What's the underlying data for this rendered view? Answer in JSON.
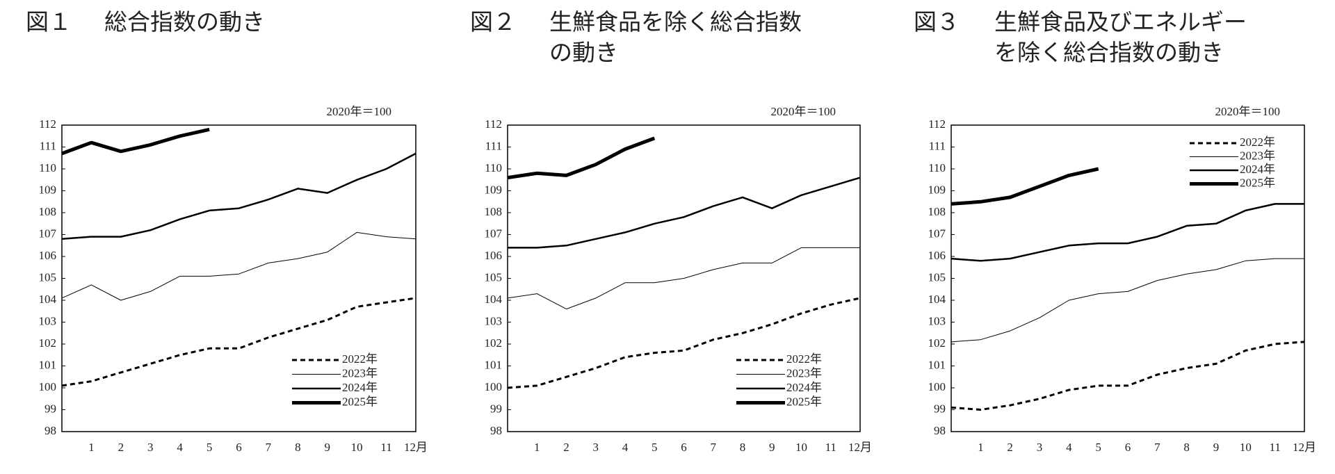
{
  "chart_data": [
    {
      "type": "line",
      "figure": "図１",
      "title_lines": [
        "総合指数の動き"
      ],
      "note": "2020年＝100",
      "categories": [
        null,
        "1",
        "2",
        "3",
        "4",
        "5",
        "6",
        "7",
        "8",
        "9",
        "10",
        "11",
        "12月"
      ],
      "ylim": [
        98,
        112
      ],
      "yticks": [
        98,
        99,
        100,
        101,
        102,
        103,
        104,
        105,
        106,
        107,
        108,
        109,
        110,
        111,
        112
      ],
      "legend": "lower right",
      "series": [
        {
          "name": "2022年",
          "color": "#000000",
          "width": 3,
          "dash": true,
          "values": [
            100.1,
            100.3,
            100.7,
            101.1,
            101.5,
            101.8,
            101.8,
            102.3,
            102.7,
            103.1,
            103.7,
            103.9,
            104.1
          ]
        },
        {
          "name": "2023年",
          "color": "#000000",
          "width": 1,
          "dash": false,
          "values": [
            104.1,
            104.7,
            104.0,
            104.4,
            105.1,
            105.1,
            105.2,
            105.7,
            105.9,
            106.2,
            107.1,
            106.9,
            106.8
          ]
        },
        {
          "name": "2024年",
          "color": "#000000",
          "width": 2.5,
          "dash": false,
          "values": [
            106.8,
            106.9,
            106.9,
            107.2,
            107.7,
            108.1,
            108.2,
            108.6,
            109.1,
            108.9,
            109.5,
            110.0,
            110.7
          ]
        },
        {
          "name": "2025年",
          "color": "#000000",
          "width": 5,
          "dash": false,
          "values": [
            110.7,
            111.2,
            110.8,
            111.1,
            111.5,
            111.8,
            null,
            null,
            null,
            null,
            null,
            null,
            null
          ]
        }
      ]
    },
    {
      "type": "line",
      "figure": "図２",
      "title_lines": [
        "生鮮食品を除く総合指数",
        "の動き"
      ],
      "note": "2020年＝100",
      "categories": [
        null,
        "1",
        "2",
        "3",
        "4",
        "5",
        "6",
        "7",
        "8",
        "9",
        "10",
        "11",
        "12月"
      ],
      "ylim": [
        98,
        112
      ],
      "yticks": [
        98,
        99,
        100,
        101,
        102,
        103,
        104,
        105,
        106,
        107,
        108,
        109,
        110,
        111,
        112
      ],
      "legend": "lower right",
      "series": [
        {
          "name": "2022年",
          "color": "#000000",
          "width": 3,
          "dash": true,
          "values": [
            100.0,
            100.1,
            100.5,
            100.9,
            101.4,
            101.6,
            101.7,
            102.2,
            102.5,
            102.9,
            103.4,
            103.8,
            104.1
          ]
        },
        {
          "name": "2023年",
          "color": "#000000",
          "width": 1,
          "dash": false,
          "values": [
            104.1,
            104.3,
            103.6,
            104.1,
            104.8,
            104.8,
            105.0,
            105.4,
            105.7,
            105.7,
            106.4,
            106.4,
            106.4
          ]
        },
        {
          "name": "2024年",
          "color": "#000000",
          "width": 2.5,
          "dash": false,
          "values": [
            106.4,
            106.4,
            106.5,
            106.8,
            107.1,
            107.5,
            107.8,
            108.3,
            108.7,
            108.2,
            108.8,
            109.2,
            109.6
          ]
        },
        {
          "name": "2025年",
          "color": "#000000",
          "width": 5,
          "dash": false,
          "values": [
            109.6,
            109.8,
            109.7,
            110.2,
            110.9,
            111.4,
            null,
            null,
            null,
            null,
            null,
            null,
            null
          ]
        }
      ]
    },
    {
      "type": "line",
      "figure": "図３",
      "title_lines": [
        "生鮮食品及びエネルギー",
        "を除く総合指数の動き"
      ],
      "note": "2020年＝100",
      "categories": [
        null,
        "1",
        "2",
        "3",
        "4",
        "5",
        "6",
        "7",
        "8",
        "9",
        "10",
        "11",
        "12月"
      ],
      "ylim": [
        98,
        112
      ],
      "yticks": [
        98,
        99,
        100,
        101,
        102,
        103,
        104,
        105,
        106,
        107,
        108,
        109,
        110,
        111,
        112
      ],
      "legend": "upper center",
      "series": [
        {
          "name": "2022年",
          "color": "#000000",
          "width": 3,
          "dash": true,
          "values": [
            99.1,
            99.0,
            99.2,
            99.5,
            99.9,
            100.1,
            100.1,
            100.6,
            100.9,
            101.1,
            101.7,
            102.0,
            102.1
          ]
        },
        {
          "name": "2023年",
          "color": "#000000",
          "width": 1,
          "dash": false,
          "values": [
            102.1,
            102.2,
            102.6,
            103.2,
            104.0,
            104.3,
            104.4,
            104.9,
            105.2,
            105.4,
            105.8,
            105.9,
            105.9
          ]
        },
        {
          "name": "2024年",
          "color": "#000000",
          "width": 2.5,
          "dash": false,
          "values": [
            105.9,
            105.8,
            105.9,
            106.2,
            106.5,
            106.6,
            106.6,
            106.9,
            107.4,
            107.5,
            108.1,
            108.4,
            108.4
          ]
        },
        {
          "name": "2025年",
          "color": "#000000",
          "width": 5,
          "dash": false,
          "values": [
            108.4,
            108.5,
            108.7,
            109.2,
            109.7,
            110.0,
            null,
            null,
            null,
            null,
            null,
            null,
            null
          ]
        }
      ]
    }
  ]
}
